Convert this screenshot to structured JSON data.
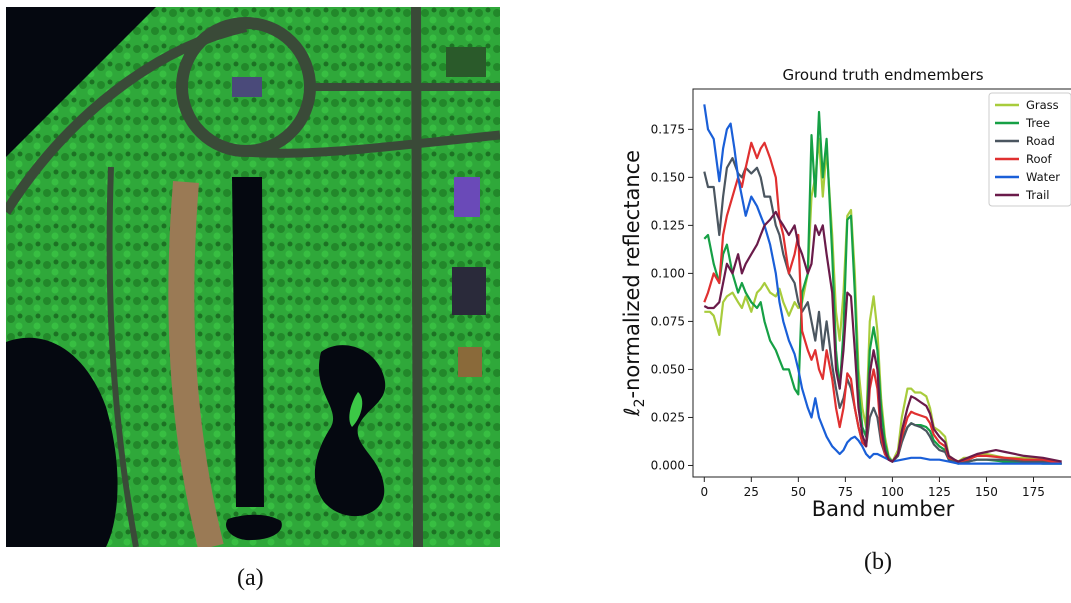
{
  "captions": {
    "a": "(a)",
    "b": "(b)"
  },
  "aerial_image": {
    "land_color": "#2fa83a",
    "water_color": "#050810",
    "path_color": "#9a7a55"
  },
  "chart_data": {
    "type": "line",
    "title": "Ground truth endmembers",
    "xlabel": "Band number",
    "ylabel_prefix": "ℓ",
    "ylabel_sub": "2",
    "ylabel_rest": "-normalized reflectance",
    "xlim": [
      -6,
      196
    ],
    "ylim": [
      -0.006,
      0.196
    ],
    "x_ticks": [
      0,
      25,
      50,
      75,
      100,
      125,
      150,
      175
    ],
    "y_ticks": [
      0.0,
      0.025,
      0.05,
      0.075,
      0.1,
      0.125,
      0.15,
      0.175
    ],
    "y_tick_labels": [
      "0.000",
      "0.025",
      "0.050",
      "0.075",
      "0.100",
      "0.125",
      "0.150",
      "0.175"
    ],
    "legend_position": "top-right",
    "grid": false,
    "series": [
      {
        "name": "Grass",
        "color": "#a8cc3c",
        "x": [
          0,
          3,
          5,
          8,
          10,
          12,
          15,
          18,
          20,
          22,
          25,
          28,
          30,
          32,
          35,
          38,
          40,
          42,
          45,
          48,
          50,
          52,
          55,
          57,
          59,
          61,
          63,
          65,
          68,
          70,
          72,
          74,
          76,
          78,
          80,
          82,
          84,
          86,
          88,
          90,
          92,
          94,
          96,
          98,
          100,
          103,
          105,
          108,
          110,
          112,
          115,
          118,
          120,
          122,
          125,
          128,
          130,
          133,
          135,
          138,
          140,
          145,
          150,
          155,
          160,
          170,
          180,
          190
        ],
        "y": [
          0.08,
          0.08,
          0.078,
          0.068,
          0.085,
          0.088,
          0.09,
          0.085,
          0.082,
          0.088,
          0.08,
          0.09,
          0.092,
          0.095,
          0.09,
          0.088,
          0.092,
          0.085,
          0.078,
          0.085,
          0.082,
          0.085,
          0.1,
          0.14,
          0.15,
          0.17,
          0.14,
          0.165,
          0.12,
          0.08,
          0.065,
          0.09,
          0.13,
          0.133,
          0.1,
          0.05,
          0.03,
          0.02,
          0.075,
          0.088,
          0.07,
          0.035,
          0.015,
          0.005,
          0.002,
          0.008,
          0.025,
          0.04,
          0.04,
          0.038,
          0.038,
          0.036,
          0.03,
          0.02,
          0.018,
          0.015,
          0.005,
          0.003,
          0.002,
          0.004,
          0.004,
          0.005,
          0.006,
          0.005,
          0.004,
          0.004,
          0.003,
          0.001
        ]
      },
      {
        "name": "Tree",
        "color": "#16a045",
        "x": [
          0,
          2,
          5,
          8,
          10,
          12,
          15,
          18,
          20,
          22,
          25,
          28,
          30,
          32,
          35,
          38,
          40,
          42,
          45,
          48,
          50,
          52,
          55,
          57,
          59,
          61,
          63,
          65,
          68,
          70,
          72,
          74,
          76,
          78,
          80,
          82,
          84,
          86,
          88,
          90,
          92,
          94,
          96,
          98,
          100,
          103,
          105,
          108,
          110,
          112,
          115,
          118,
          120,
          122,
          125,
          128,
          130,
          133,
          135,
          140,
          145,
          150,
          160,
          170,
          180,
          190
        ],
        "y": [
          0.118,
          0.12,
          0.105,
          0.095,
          0.11,
          0.115,
          0.1,
          0.09,
          0.095,
          0.09,
          0.085,
          0.082,
          0.085,
          0.075,
          0.065,
          0.06,
          0.055,
          0.05,
          0.05,
          0.04,
          0.037,
          0.09,
          0.1,
          0.172,
          0.14,
          0.184,
          0.15,
          0.17,
          0.11,
          0.06,
          0.04,
          0.07,
          0.128,
          0.13,
          0.09,
          0.04,
          0.02,
          0.015,
          0.06,
          0.072,
          0.06,
          0.03,
          0.012,
          0.004,
          0.002,
          0.005,
          0.013,
          0.02,
          0.022,
          0.021,
          0.021,
          0.02,
          0.018,
          0.013,
          0.01,
          0.008,
          0.003,
          0.002,
          0.001,
          0.002,
          0.003,
          0.003,
          0.002,
          0.002,
          0.001,
          0.001
        ]
      },
      {
        "name": "Road",
        "color": "#4b5660",
        "x": [
          0,
          2,
          5,
          8,
          10,
          12,
          15,
          18,
          20,
          22,
          25,
          28,
          30,
          32,
          35,
          38,
          40,
          42,
          45,
          48,
          50,
          52,
          55,
          57,
          59,
          61,
          63,
          65,
          68,
          70,
          72,
          74,
          76,
          78,
          80,
          82,
          84,
          86,
          88,
          90,
          92,
          94,
          96,
          98,
          100,
          103,
          105,
          108,
          110,
          112,
          115,
          118,
          120,
          122,
          125,
          128,
          130,
          133,
          135,
          140,
          145,
          150,
          160,
          170,
          180,
          190
        ],
        "y": [
          0.153,
          0.145,
          0.145,
          0.12,
          0.14,
          0.155,
          0.16,
          0.152,
          0.15,
          0.155,
          0.152,
          0.155,
          0.15,
          0.14,
          0.14,
          0.125,
          0.12,
          0.11,
          0.1,
          0.095,
          0.085,
          0.08,
          0.085,
          0.075,
          0.065,
          0.08,
          0.06,
          0.075,
          0.052,
          0.04,
          0.03,
          0.035,
          0.045,
          0.04,
          0.03,
          0.02,
          0.012,
          0.01,
          0.025,
          0.03,
          0.025,
          0.012,
          0.006,
          0.003,
          0.002,
          0.005,
          0.012,
          0.02,
          0.022,
          0.021,
          0.02,
          0.018,
          0.015,
          0.011,
          0.008,
          0.007,
          0.003,
          0.002,
          0.001,
          0.002,
          0.003,
          0.003,
          0.003,
          0.002,
          0.002,
          0.001
        ]
      },
      {
        "name": "Roof",
        "color": "#e03030",
        "x": [
          0,
          2,
          5,
          8,
          10,
          12,
          15,
          18,
          20,
          22,
          25,
          28,
          30,
          32,
          35,
          38,
          40,
          42,
          45,
          48,
          50,
          52,
          55,
          57,
          59,
          61,
          63,
          65,
          68,
          70,
          72,
          74,
          76,
          78,
          80,
          82,
          84,
          86,
          88,
          90,
          92,
          94,
          96,
          98,
          100,
          103,
          105,
          108,
          110,
          112,
          115,
          118,
          120,
          122,
          125,
          128,
          130,
          133,
          135,
          140,
          145,
          150,
          160,
          170,
          180,
          190
        ],
        "y": [
          0.085,
          0.09,
          0.1,
          0.095,
          0.12,
          0.13,
          0.14,
          0.15,
          0.145,
          0.155,
          0.168,
          0.16,
          0.165,
          0.168,
          0.16,
          0.15,
          0.128,
          0.12,
          0.1,
          0.11,
          0.12,
          0.07,
          0.06,
          0.055,
          0.06,
          0.05,
          0.045,
          0.06,
          0.045,
          0.03,
          0.02,
          0.03,
          0.048,
          0.045,
          0.03,
          0.02,
          0.012,
          0.01,
          0.04,
          0.05,
          0.04,
          0.015,
          0.006,
          0.003,
          0.002,
          0.006,
          0.015,
          0.025,
          0.028,
          0.027,
          0.026,
          0.025,
          0.022,
          0.016,
          0.012,
          0.01,
          0.004,
          0.003,
          0.002,
          0.003,
          0.005,
          0.005,
          0.004,
          0.003,
          0.003,
          0.001
        ]
      },
      {
        "name": "Water",
        "color": "#1a5fd8",
        "x": [
          0,
          2,
          5,
          8,
          10,
          12,
          14,
          16,
          18,
          20,
          22,
          25,
          28,
          30,
          32,
          35,
          38,
          40,
          42,
          45,
          48,
          50,
          52,
          55,
          57,
          59,
          61,
          63,
          65,
          68,
          70,
          72,
          74,
          76,
          78,
          80,
          82,
          84,
          86,
          88,
          90,
          92,
          94,
          96,
          98,
          100,
          105,
          110,
          115,
          120,
          125,
          130,
          135,
          140,
          150,
          160,
          170,
          180,
          190
        ],
        "y": [
          0.188,
          0.175,
          0.17,
          0.148,
          0.165,
          0.175,
          0.178,
          0.165,
          0.15,
          0.14,
          0.13,
          0.14,
          0.135,
          0.13,
          0.125,
          0.115,
          0.1,
          0.085,
          0.075,
          0.065,
          0.058,
          0.05,
          0.04,
          0.03,
          0.025,
          0.035,
          0.025,
          0.02,
          0.015,
          0.01,
          0.008,
          0.006,
          0.008,
          0.012,
          0.014,
          0.015,
          0.013,
          0.01,
          0.006,
          0.004,
          0.006,
          0.006,
          0.005,
          0.004,
          0.003,
          0.002,
          0.003,
          0.004,
          0.004,
          0.003,
          0.003,
          0.002,
          0.001,
          0.001,
          0.001,
          0.001,
          0.001,
          0.001,
          0.001
        ]
      },
      {
        "name": "Trail",
        "color": "#6a1b4a",
        "x": [
          0,
          2,
          5,
          8,
          10,
          12,
          15,
          18,
          20,
          22,
          25,
          28,
          30,
          32,
          35,
          38,
          40,
          42,
          45,
          48,
          50,
          52,
          55,
          57,
          59,
          61,
          63,
          65,
          68,
          70,
          72,
          74,
          76,
          78,
          80,
          82,
          84,
          86,
          88,
          90,
          92,
          94,
          96,
          98,
          100,
          103,
          105,
          108,
          110,
          112,
          115,
          118,
          120,
          122,
          125,
          128,
          130,
          133,
          135,
          140,
          145,
          150,
          155,
          160,
          170,
          180,
          190
        ],
        "y": [
          0.083,
          0.082,
          0.082,
          0.085,
          0.095,
          0.105,
          0.1,
          0.11,
          0.1,
          0.105,
          0.11,
          0.115,
          0.12,
          0.125,
          0.128,
          0.132,
          0.128,
          0.125,
          0.12,
          0.125,
          0.115,
          0.11,
          0.1,
          0.105,
          0.125,
          0.12,
          0.125,
          0.11,
          0.09,
          0.05,
          0.04,
          0.06,
          0.09,
          0.088,
          0.06,
          0.03,
          0.016,
          0.01,
          0.048,
          0.06,
          0.05,
          0.02,
          0.008,
          0.003,
          0.002,
          0.006,
          0.018,
          0.03,
          0.036,
          0.035,
          0.033,
          0.031,
          0.027,
          0.019,
          0.015,
          0.012,
          0.005,
          0.003,
          0.002,
          0.004,
          0.006,
          0.007,
          0.008,
          0.007,
          0.005,
          0.004,
          0.002
        ]
      }
    ]
  }
}
